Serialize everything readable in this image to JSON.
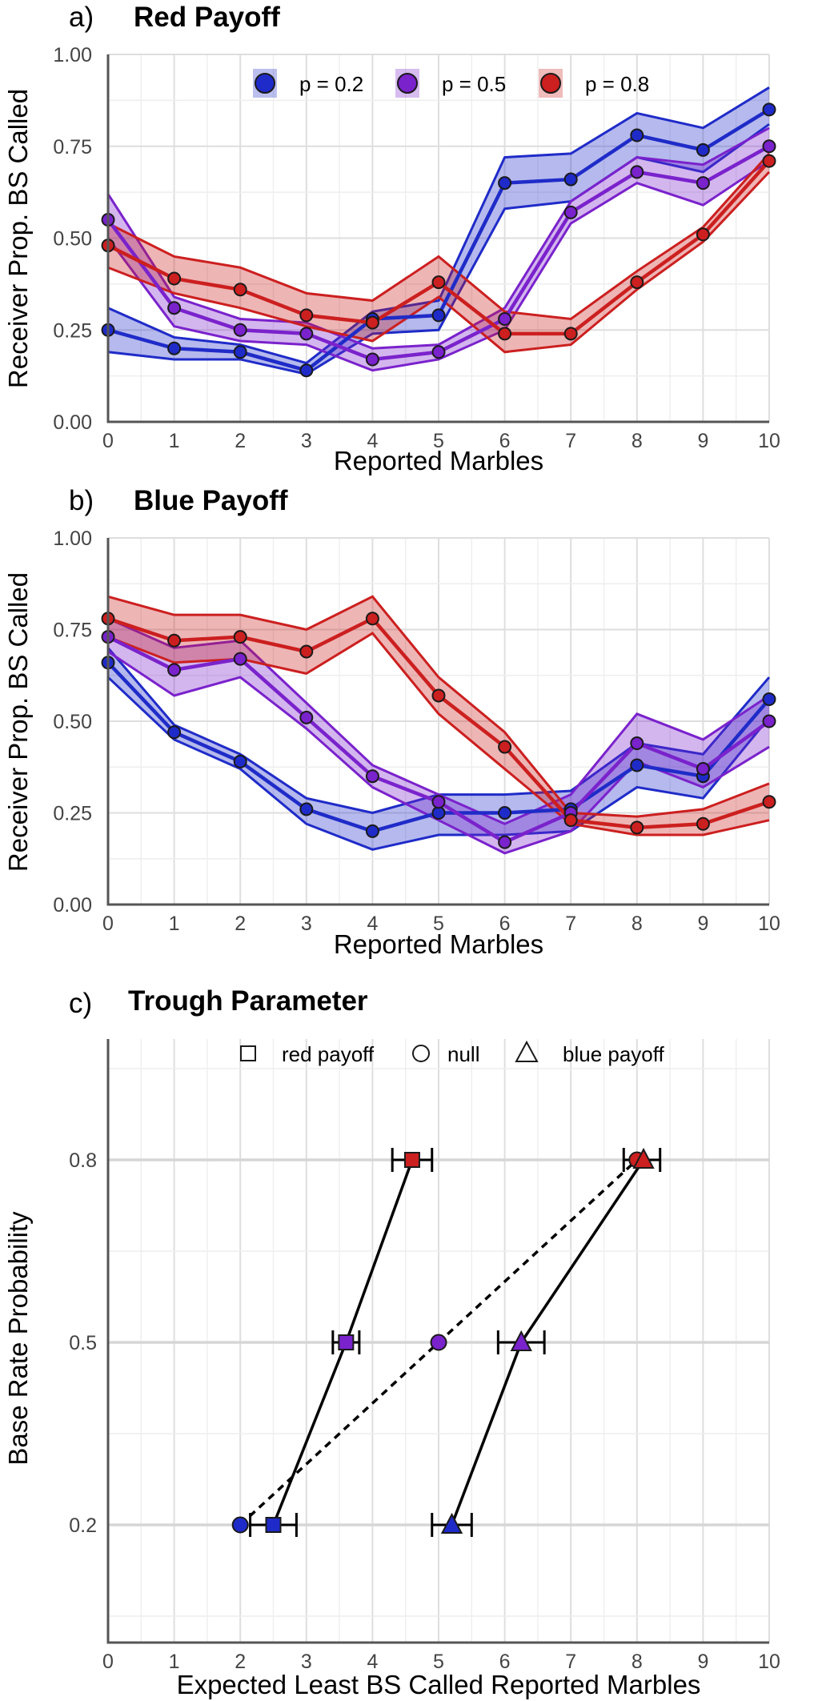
{
  "colors": {
    "blue": "#1f2bc8",
    "purple": "#7a22cc",
    "red": "#cc1f1f"
  },
  "chart_data": [
    {
      "type": "line",
      "panel_label": "a)",
      "title": "Red Payoff",
      "xlabel": "Reported Marbles",
      "ylabel": "Receiver Prop. BS Called",
      "xlim": [
        0,
        10
      ],
      "ylim": [
        0,
        1
      ],
      "x_ticks": [
        "0",
        "1",
        "2",
        "3",
        "4",
        "5",
        "6",
        "7",
        "8",
        "9",
        "10"
      ],
      "y_ticks": [
        "0.00",
        "0.25",
        "0.50",
        "0.75",
        "1.00"
      ],
      "legend_position": "top-center",
      "x": [
        0,
        1,
        2,
        3,
        4,
        5,
        6,
        7,
        8,
        9,
        10
      ],
      "series": [
        {
          "name": "p = 0.2",
          "color": "#1f2bc8",
          "values": [
            0.25,
            0.2,
            0.19,
            0.14,
            0.28,
            0.29,
            0.65,
            0.66,
            0.78,
            0.74,
            0.85
          ],
          "lower": [
            0.19,
            0.17,
            0.17,
            0.13,
            0.24,
            0.25,
            0.58,
            0.6,
            0.72,
            0.68,
            0.81
          ],
          "upper": [
            0.31,
            0.23,
            0.21,
            0.16,
            0.3,
            0.33,
            0.72,
            0.73,
            0.84,
            0.8,
            0.91
          ]
        },
        {
          "name": "p = 0.5",
          "color": "#7a22cc",
          "values": [
            0.55,
            0.31,
            0.25,
            0.24,
            0.17,
            0.19,
            0.28,
            0.57,
            0.68,
            0.65,
            0.75
          ],
          "lower": [
            0.5,
            0.26,
            0.22,
            0.21,
            0.14,
            0.17,
            0.25,
            0.54,
            0.65,
            0.59,
            0.71
          ],
          "upper": [
            0.62,
            0.34,
            0.28,
            0.27,
            0.2,
            0.21,
            0.31,
            0.6,
            0.72,
            0.7,
            0.8
          ]
        },
        {
          "name": "p = 0.8",
          "color": "#cc1f1f",
          "values": [
            0.48,
            0.39,
            0.36,
            0.29,
            0.27,
            0.38,
            0.24,
            0.24,
            0.38,
            0.51,
            0.71
          ],
          "lower": [
            0.42,
            0.35,
            0.31,
            0.26,
            0.22,
            0.34,
            0.19,
            0.21,
            0.36,
            0.49,
            0.68
          ],
          "upper": [
            0.54,
            0.45,
            0.42,
            0.35,
            0.33,
            0.45,
            0.3,
            0.28,
            0.41,
            0.53,
            0.73
          ]
        }
      ]
    },
    {
      "type": "line",
      "panel_label": "b)",
      "title": "Blue Payoff",
      "xlabel": "Reported Marbles",
      "ylabel": "Receiver Prop. BS Called",
      "xlim": [
        0,
        10
      ],
      "ylim": [
        0,
        1
      ],
      "x_ticks": [
        "0",
        "1",
        "2",
        "3",
        "4",
        "5",
        "6",
        "7",
        "8",
        "9",
        "10"
      ],
      "y_ticks": [
        "0.00",
        "0.25",
        "0.50",
        "0.75",
        "1.00"
      ],
      "x": [
        0,
        1,
        2,
        3,
        4,
        5,
        6,
        7,
        8,
        9,
        10
      ],
      "series": [
        {
          "name": "p = 0.2",
          "color": "#1f2bc8",
          "values": [
            0.66,
            0.47,
            0.39,
            0.26,
            0.2,
            0.25,
            0.25,
            0.26,
            0.38,
            0.35,
            0.56
          ],
          "lower": [
            0.62,
            0.45,
            0.37,
            0.22,
            0.15,
            0.19,
            0.19,
            0.2,
            0.32,
            0.29,
            0.51
          ],
          "upper": [
            0.7,
            0.49,
            0.41,
            0.29,
            0.25,
            0.3,
            0.3,
            0.31,
            0.44,
            0.41,
            0.62
          ]
        },
        {
          "name": "p = 0.5",
          "color": "#7a22cc",
          "values": [
            0.73,
            0.64,
            0.67,
            0.51,
            0.35,
            0.28,
            0.17,
            0.25,
            0.44,
            0.37,
            0.5
          ],
          "lower": [
            0.69,
            0.57,
            0.62,
            0.48,
            0.32,
            0.23,
            0.14,
            0.2,
            0.39,
            0.32,
            0.43
          ],
          "upper": [
            0.78,
            0.7,
            0.72,
            0.55,
            0.38,
            0.3,
            0.22,
            0.3,
            0.52,
            0.45,
            0.57
          ]
        },
        {
          "name": "p = 0.8",
          "color": "#cc1f1f",
          "values": [
            0.78,
            0.72,
            0.73,
            0.69,
            0.78,
            0.57,
            0.43,
            0.23,
            0.21,
            0.22,
            0.28
          ],
          "lower": [
            0.73,
            0.66,
            0.67,
            0.63,
            0.74,
            0.52,
            0.37,
            0.22,
            0.19,
            0.19,
            0.23
          ],
          "upper": [
            0.84,
            0.79,
            0.79,
            0.75,
            0.84,
            0.62,
            0.47,
            0.25,
            0.24,
            0.26,
            0.33
          ]
        }
      ]
    },
    {
      "type": "scatter",
      "panel_label": "c)",
      "title": "Trough Parameter",
      "xlabel": "Expected Least BS Called Reported Marbles",
      "ylabel": "Base Rate Probability",
      "xlim": [
        0,
        10
      ],
      "x_ticks": [
        "0",
        "1",
        "2",
        "3",
        "4",
        "5",
        "6",
        "7",
        "8",
        "9",
        "10"
      ],
      "y_categories": [
        "0.2",
        "0.5",
        "0.8"
      ],
      "legend_position": "top-center",
      "series": [
        {
          "name": "red payoff",
          "marker": "square",
          "line": "solid",
          "points": [
            {
              "y": "0.2",
              "x": 2.5,
              "xmin": 2.15,
              "xmax": 2.85,
              "color": "#1f2bc8"
            },
            {
              "y": "0.5",
              "x": 3.6,
              "xmin": 3.4,
              "xmax": 3.8,
              "color": "#7a22cc"
            },
            {
              "y": "0.8",
              "x": 4.6,
              "xmin": 4.3,
              "xmax": 4.9,
              "color": "#cc1f1f"
            }
          ]
        },
        {
          "name": "null",
          "marker": "circle",
          "line": "dashed",
          "points": [
            {
              "y": "0.2",
              "x": 2.0,
              "color": "#1f2bc8"
            },
            {
              "y": "0.5",
              "x": 5.0,
              "color": "#7a22cc"
            },
            {
              "y": "0.8",
              "x": 8.0,
              "color": "#cc1f1f"
            }
          ]
        },
        {
          "name": "blue payoff",
          "marker": "triangle",
          "line": "solid",
          "points": [
            {
              "y": "0.2",
              "x": 5.2,
              "xmin": 4.9,
              "xmax": 5.5,
              "color": "#1f2bc8"
            },
            {
              "y": "0.5",
              "x": 6.25,
              "xmin": 5.9,
              "xmax": 6.6,
              "color": "#7a22cc"
            },
            {
              "y": "0.8",
              "x": 8.1,
              "xmin": 7.8,
              "xmax": 8.35,
              "color": "#cc1f1f"
            }
          ]
        }
      ]
    }
  ]
}
